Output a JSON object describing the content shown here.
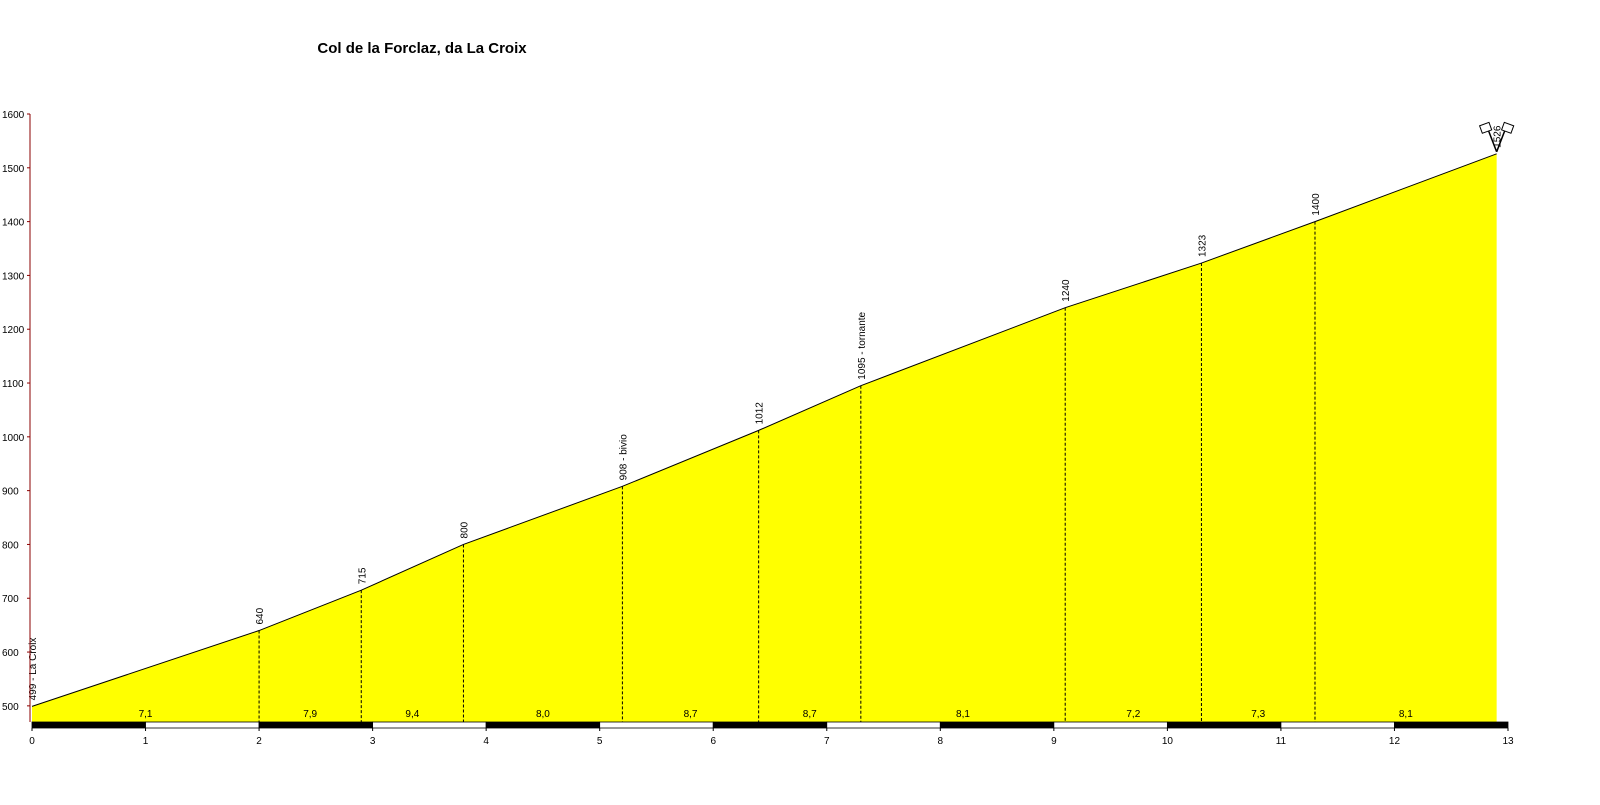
{
  "chart_data": {
    "type": "area",
    "title": "Col de la Forclaz, da La Croix",
    "x": [
      0,
      2.0,
      2.9,
      3.8,
      5.2,
      6.4,
      7.3,
      9.1,
      10.3,
      11.3,
      12.9
    ],
    "values": [
      499,
      640,
      715,
      800,
      908,
      1012,
      1095,
      1240,
      1323,
      1400,
      1526
    ],
    "value_labels": [
      "499 - La Croix",
      "640",
      "715",
      "800",
      "908 - bivio",
      "1012",
      "1095 - tornante",
      "1240",
      "1323",
      "1400",
      "1526"
    ],
    "color": "#ffff00",
    "gradients": {
      "values": [
        7.1,
        7.9,
        9.4,
        8.0,
        8.7,
        8.7,
        8.1,
        7.2,
        7.3,
        8.1
      ],
      "value_labels": [
        "7,1",
        "7,9",
        "9,4",
        "8,0",
        "8,7",
        "8,7",
        "8,1",
        "7,2",
        "7,3",
        "8,1"
      ]
    },
    "xlim": [
      0,
      13
    ],
    "ylim": [
      470,
      1600
    ],
    "xticks": [
      0,
      1,
      2,
      3,
      4,
      5,
      6,
      7,
      8,
      9,
      10,
      11,
      12,
      13
    ],
    "yticks": [
      500,
      600,
      700,
      800,
      900,
      1000,
      1100,
      1200,
      1300,
      1400,
      1500,
      1600
    ]
  }
}
